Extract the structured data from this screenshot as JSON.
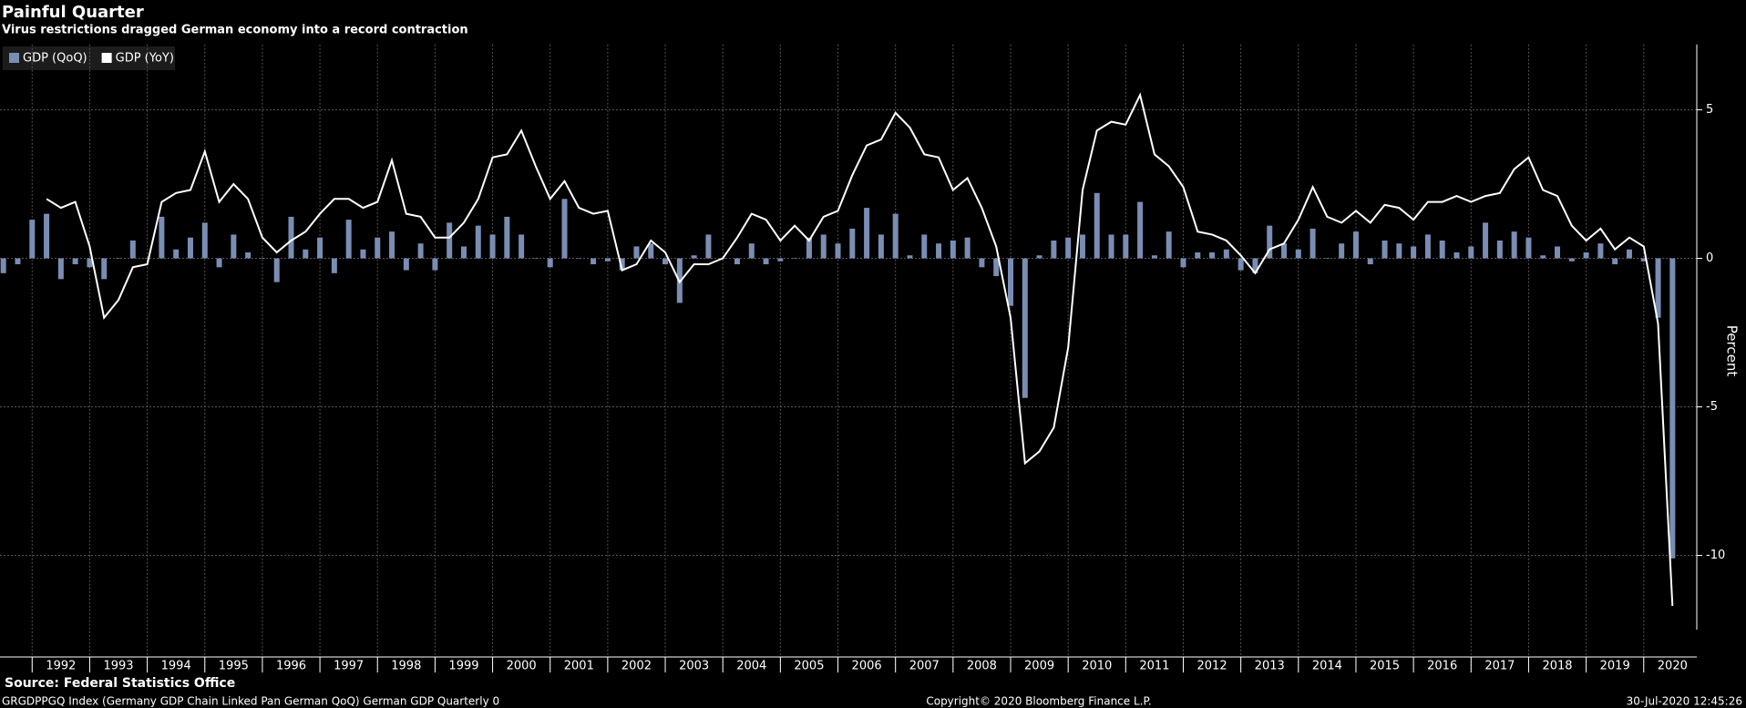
{
  "chart_data": {
    "type": "bar_line",
    "title": "Painful Quarter",
    "subtitle": "Virus restrictions dragged German economy into a record contraction",
    "y_label": "Percent",
    "source": "Source: Federal Statistics Office",
    "footer_left": "GRGDPPGQ Index (Germany GDP Chain Linked Pan German QoQ) German GDP  Quarterly 0",
    "footer_center": "Copyright© 2020 Bloomberg Finance L.P.",
    "footer_right": "30-Jul-2020 12:45:26",
    "categories": [
      null,
      null,
      null,
      null,
      "1992",
      null,
      null,
      null,
      "1993",
      null,
      null,
      null,
      "1994",
      null,
      null,
      null,
      "1995",
      null,
      null,
      null,
      "1996",
      null,
      null,
      null,
      "1997",
      null,
      null,
      null,
      "1998",
      null,
      null,
      null,
      "1999",
      null,
      null,
      null,
      "2000",
      null,
      null,
      null,
      "2001",
      null,
      null,
      null,
      "2002",
      null,
      null,
      null,
      "2003",
      null,
      null,
      null,
      "2004",
      null,
      null,
      null,
      "2005",
      null,
      null,
      null,
      "2006",
      null,
      null,
      null,
      "2007",
      null,
      null,
      null,
      "2008",
      null,
      null,
      null,
      "2009",
      null,
      null,
      null,
      "2010",
      null,
      null,
      null,
      "2011",
      null,
      null,
      null,
      "2012",
      null,
      null,
      null,
      "2013",
      null,
      null,
      null,
      "2014",
      null,
      null,
      null,
      "2015",
      null,
      null,
      null,
      "2016",
      null,
      null,
      null,
      "2017",
      null,
      null,
      null,
      "2018",
      null,
      null,
      null,
      "2019",
      null,
      null,
      null,
      "2020"
    ],
    "series": [
      {
        "name": "GDP (QoQ)",
        "kind": "bar",
        "color": "#7a8db3",
        "values": [
          -0.5,
          -0.2,
          1.3,
          1.5,
          -0.7,
          -0.2,
          -0.3,
          -0.7,
          0.0,
          0.6,
          0.0,
          1.4,
          0.3,
          0.7,
          1.2,
          -0.3,
          0.8,
          0.2,
          0.0,
          -0.8,
          1.4,
          0.3,
          0.7,
          -0.5,
          1.3,
          0.3,
          0.7,
          0.9,
          -0.4,
          0.5,
          -0.4,
          1.2,
          0.4,
          1.1,
          0.8,
          1.4,
          0.8,
          0.0,
          -0.3,
          2.0,
          0.0,
          -0.2,
          -0.1,
          -0.4,
          0.4,
          0.5,
          -0.2,
          -1.5,
          0.1,
          0.8,
          0.0,
          -0.2,
          0.5,
          -0.2,
          -0.1,
          0.0,
          0.7,
          0.8,
          0.5,
          1.0,
          1.7,
          0.8,
          1.5,
          0.1,
          0.8,
          0.5,
          0.6,
          0.7,
          -0.3,
          -0.6,
          -1.6,
          -4.7,
          0.1,
          0.6,
          0.7,
          0.8,
          2.2,
          0.8,
          0.8,
          1.9,
          0.1,
          0.9,
          -0.3,
          0.2,
          0.2,
          0.3,
          -0.4,
          -0.5,
          1.1,
          0.5,
          0.3,
          1.0,
          0.0,
          0.5,
          0.9,
          -0.2,
          0.6,
          0.5,
          0.4,
          0.8,
          0.6,
          0.2,
          0.4,
          1.2,
          0.6,
          0.9,
          0.7,
          0.1,
          0.4,
          -0.1,
          0.2,
          0.5,
          -0.2,
          0.3,
          -0.1,
          -2.0,
          -10.1
        ]
      },
      {
        "name": "GDP (YoY)",
        "kind": "line",
        "color": "#ffffff",
        "values": [
          null,
          null,
          null,
          2.0,
          1.7,
          1.9,
          0.4,
          -2.0,
          -1.4,
          -0.3,
          -0.2,
          1.9,
          2.2,
          2.3,
          3.6,
          1.9,
          2.5,
          2.0,
          0.7,
          0.2,
          0.6,
          0.9,
          1.5,
          2.0,
          2.0,
          1.7,
          1.9,
          3.3,
          1.5,
          1.4,
          0.7,
          0.7,
          1.2,
          2.0,
          3.4,
          3.5,
          4.3,
          3.1,
          2.0,
          2.6,
          1.7,
          1.5,
          1.6,
          -0.4,
          -0.2,
          0.6,
          0.2,
          -0.8,
          -0.2,
          -0.2,
          0.0,
          0.7,
          1.5,
          1.3,
          0.6,
          1.1,
          0.6,
          1.4,
          1.6,
          2.8,
          3.8,
          4.0,
          4.9,
          4.4,
          3.5,
          3.4,
          2.3,
          2.7,
          1.7,
          0.4,
          -2.0,
          -6.9,
          -6.5,
          -5.7,
          -3.0,
          2.3,
          4.3,
          4.6,
          4.5,
          5.5,
          3.5,
          3.1,
          2.4,
          0.9,
          0.8,
          0.6,
          0.1,
          -0.5,
          0.3,
          0.5,
          1.3,
          2.4,
          1.4,
          1.2,
          1.6,
          1.2,
          1.8,
          1.7,
          1.3,
          1.9,
          1.9,
          2.1,
          1.9,
          2.1,
          2.2,
          3.0,
          3.4,
          2.3,
          2.1,
          1.1,
          0.6,
          1.0,
          0.3,
          0.7,
          0.4,
          -2.2,
          -11.7
        ]
      }
    ],
    "ylim": [
      -12.5,
      7.2
    ],
    "yticks": [
      -10,
      -5,
      0,
      5
    ],
    "grid": true,
    "legend": "top-left"
  }
}
